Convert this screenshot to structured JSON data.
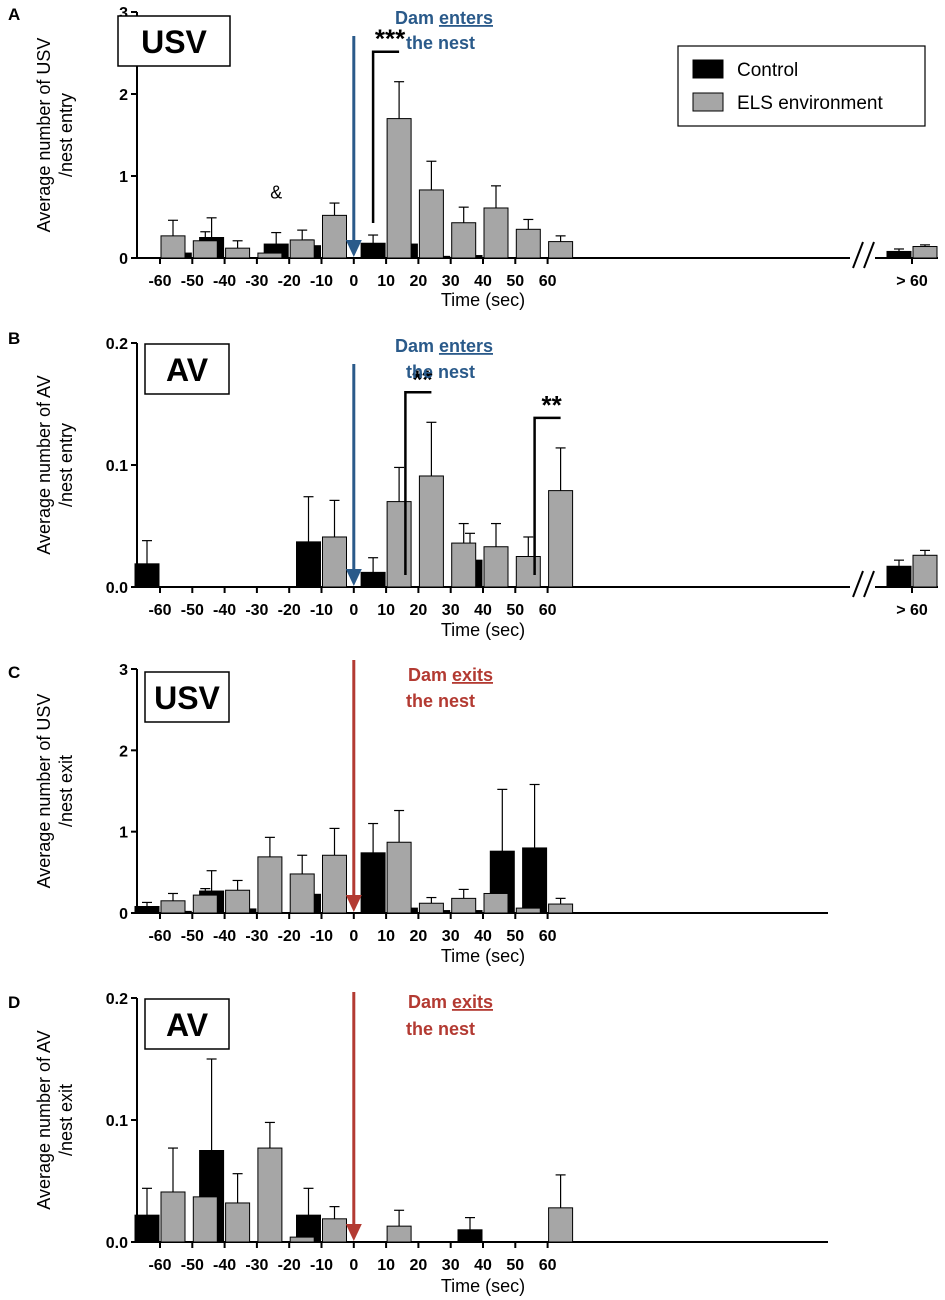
{
  "legend": {
    "control": "Control",
    "els": "ELS environment"
  },
  "colors": {
    "control": "#000000",
    "els": "#a6a6a6",
    "enter_arrow": "#2a5a8a",
    "exit_arrow": "#b33a32"
  },
  "chart_data": [
    {
      "panel": "A",
      "type": "bar",
      "badge": "USV",
      "ylabel_line1": "Average number of USV",
      "ylabel_line2": "/nest entry",
      "xlabel": "Time (sec)",
      "ylim": [
        0,
        3
      ],
      "yticks": [
        "0",
        "1",
        "2",
        "3"
      ],
      "categories": [
        "-60",
        "-50",
        "-40",
        "-30",
        "-20",
        "-10",
        "0",
        "10",
        "20",
        "30",
        "40",
        "50",
        "60",
        "> 60"
      ],
      "has_break": true,
      "arrow": {
        "category": "0",
        "line1_prefix": "Dam ",
        "line1_underlined": "enters",
        "line2": "the nest",
        "color": "enter"
      },
      "series": [
        {
          "name": "Control",
          "values": [
            null,
            0.06,
            0.25,
            null,
            0.17,
            0.15,
            null,
            0.18,
            0.17,
            0.02,
            0.03,
            null,
            null,
            0.08
          ],
          "errors": [
            null,
            0.04,
            0.24,
            null,
            0.14,
            0.07,
            null,
            0.1,
            0.12,
            0.01,
            0.02,
            null,
            null,
            0.03
          ]
        },
        {
          "name": "ELS environment",
          "values": [
            0.27,
            0.21,
            0.12,
            0.06,
            0.22,
            0.52,
            null,
            1.7,
            0.83,
            0.43,
            0.61,
            0.35,
            0.2,
            0.14
          ],
          "errors": [
            0.19,
            0.11,
            0.09,
            0.04,
            0.12,
            0.15,
            null,
            0.45,
            0.35,
            0.19,
            0.27,
            0.12,
            0.07,
            0.02
          ]
        }
      ],
      "significance": [
        {
          "label": "***",
          "category": "10"
        }
      ],
      "annotations": [
        {
          "label": "&",
          "category": "-20"
        }
      ]
    },
    {
      "panel": "B",
      "type": "bar",
      "badge": "AV",
      "ylabel_line1": "Average number of AV",
      "ylabel_line2": "/nest entry",
      "xlabel": "Time (sec)",
      "ylim": [
        0,
        0.2
      ],
      "yticks": [
        "0.0",
        "0.1",
        "0.2"
      ],
      "categories": [
        "-60",
        "-50",
        "-40",
        "-30",
        "-20",
        "-10",
        "0",
        "10",
        "20",
        "30",
        "40",
        "50",
        "60",
        "> 60"
      ],
      "has_break": true,
      "arrow": {
        "category": "0",
        "line1_prefix": "Dam ",
        "line1_underlined": "enters",
        "line2": "the nest",
        "color": "enter"
      },
      "series": [
        {
          "name": "Control",
          "values": [
            0.019,
            null,
            null,
            null,
            null,
            0.037,
            null,
            0.012,
            null,
            null,
            0.022,
            null,
            null,
            0.017
          ],
          "errors": [
            0.019,
            null,
            null,
            null,
            null,
            0.037,
            null,
            0.012,
            null,
            null,
            0.022,
            null,
            null,
            0.005
          ]
        },
        {
          "name": "ELS environment",
          "values": [
            null,
            null,
            null,
            null,
            null,
            0.041,
            null,
            0.07,
            0.091,
            0.036,
            0.033,
            0.025,
            0.079,
            0.026
          ],
          "errors": [
            null,
            null,
            null,
            null,
            null,
            0.03,
            null,
            0.028,
            0.044,
            0.016,
            0.019,
            0.016,
            0.035,
            0.004
          ]
        }
      ],
      "significance": [
        {
          "label": "**",
          "category": "20"
        },
        {
          "label": "**",
          "category": "60"
        }
      ],
      "annotations": []
    },
    {
      "panel": "C",
      "type": "bar",
      "badge": "USV",
      "ylabel_line1": "Average number of USV",
      "ylabel_line2": "/nest exit",
      "xlabel": "Time (sec)",
      "ylim": [
        0,
        3
      ],
      "yticks": [
        "0",
        "1",
        "2",
        "3"
      ],
      "categories": [
        "-60",
        "-50",
        "-40",
        "-30",
        "-20",
        "-10",
        "0",
        "10",
        "20",
        "30",
        "40",
        "50",
        "60"
      ],
      "has_break": false,
      "arrow": {
        "category": "0",
        "line1_prefix": "Dam ",
        "line1_underlined": "exits",
        "line2": "the nest",
        "color": "exit"
      },
      "series": [
        {
          "name": "Control",
          "values": [
            0.08,
            0.02,
            0.27,
            0.05,
            null,
            0.23,
            null,
            0.74,
            0.06,
            0.03,
            0.03,
            0.76,
            0.8
          ],
          "errors": [
            0.05,
            0.01,
            0.25,
            0.03,
            null,
            0.1,
            null,
            0.36,
            0.03,
            0.02,
            0.02,
            0.76,
            0.78
          ]
        },
        {
          "name": "ELS environment",
          "values": [
            0.15,
            0.22,
            0.28,
            0.69,
            0.48,
            0.71,
            null,
            0.87,
            0.12,
            0.18,
            0.24,
            0.06,
            0.11
          ],
          "errors": [
            0.09,
            0.08,
            0.12,
            0.24,
            0.23,
            0.33,
            null,
            0.39,
            0.07,
            0.11,
            0.11,
            0.04,
            0.07
          ]
        }
      ],
      "significance": [],
      "annotations": []
    },
    {
      "panel": "D",
      "type": "bar",
      "badge": "AV",
      "ylabel_line1": "Average number of AV",
      "ylabel_line2": "/nest exit",
      "xlabel": "Time (sec)",
      "ylim": [
        0,
        0.2
      ],
      "yticks": [
        "0.0",
        "0.1",
        "0.2"
      ],
      "categories": [
        "-60",
        "-50",
        "-40",
        "-30",
        "-20",
        "-10",
        "0",
        "10",
        "20",
        "30",
        "40",
        "50",
        "60"
      ],
      "has_break": false,
      "arrow": {
        "category": "0",
        "line1_prefix": "Dam ",
        "line1_underlined": "exits",
        "line2": "the nest",
        "color": "exit"
      },
      "series": [
        {
          "name": "Control",
          "values": [
            0.022,
            null,
            0.075,
            null,
            null,
            0.022,
            null,
            null,
            null,
            null,
            0.01,
            null,
            null
          ],
          "errors": [
            0.022,
            null,
            0.075,
            null,
            null,
            0.022,
            null,
            null,
            null,
            null,
            0.01,
            null,
            null
          ]
        },
        {
          "name": "ELS environment",
          "values": [
            0.041,
            0.037,
            0.032,
            0.077,
            0.004,
            0.019,
            null,
            0.013,
            null,
            null,
            null,
            null,
            0.028
          ],
          "errors": [
            0.036,
            0.036,
            0.024,
            0.021,
            0.004,
            0.01,
            null,
            0.013,
            null,
            null,
            null,
            null,
            0.027
          ]
        }
      ],
      "significance": [],
      "annotations": []
    }
  ]
}
